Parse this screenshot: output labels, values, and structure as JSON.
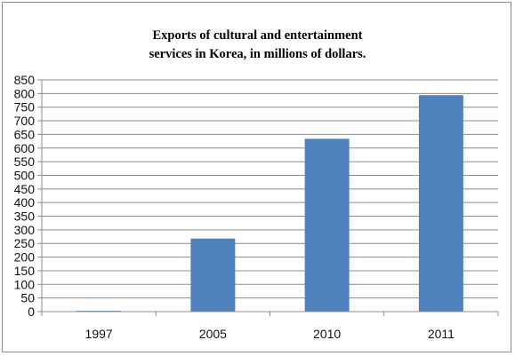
{
  "chart_data": {
    "type": "bar",
    "title_lines": [
      "Exports of cultural and entertainment",
      "services in Korea, in millions of dollars."
    ],
    "categories": [
      "1997",
      "2005",
      "2010",
      "2011"
    ],
    "values": [
      3,
      268,
      634,
      794
    ],
    "ylim": [
      0,
      850
    ],
    "yticks": [
      0,
      50,
      100,
      150,
      200,
      250,
      300,
      350,
      400,
      450,
      500,
      550,
      600,
      650,
      700,
      750,
      800,
      850
    ],
    "grid": true,
    "legend": "none",
    "colors": {
      "bar": "#4f81bd",
      "grid": "#8c8c8c",
      "axis": "#8c8c8c"
    }
  }
}
